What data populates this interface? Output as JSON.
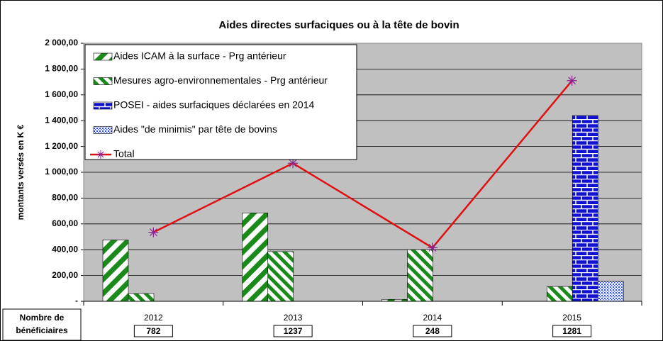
{
  "chart_data": {
    "type": "bar",
    "title": "Aides directes surfaciques ou à la tête de bovin",
    "y_label": "montants versés en K €",
    "categories": [
      "2012",
      "2013",
      "2014",
      "2015"
    ],
    "series": [
      {
        "name": "Aides ICAM à la surface - Prg antérieur",
        "color": "#1a8a1a",
        "pattern": "wide-diagonal",
        "values": [
          475,
          685,
          15,
          null
        ]
      },
      {
        "name": "Mesures agro-environnementales - Prg antérieur",
        "color": "#1a8a1a",
        "pattern": "diagonal",
        "values": [
          60,
          385,
          400,
          115
        ]
      },
      {
        "name": "POSEI - aides surfaciques déclarées en 2014",
        "color": "#1010d0",
        "pattern": "brick",
        "values": [
          null,
          null,
          null,
          1440
        ]
      },
      {
        "name": "Aides \"de minimis\" par tête de bovins",
        "color": "#3050e0",
        "pattern": "dots",
        "values": [
          null,
          null,
          null,
          155
        ]
      },
      {
        "name": "Total",
        "type": "line",
        "color": "#e01010",
        "marker_color": "#8a2090",
        "values": [
          535,
          1070,
          415,
          1710
        ]
      }
    ],
    "ylim": [
      0,
      2000
    ],
    "yticks": [
      {
        "value": 0,
        "label": "-"
      },
      {
        "value": 200,
        "label": "200,00"
      },
      {
        "value": 400,
        "label": "400,00"
      },
      {
        "value": 600,
        "label": "600,00"
      },
      {
        "value": 800,
        "label": "800,00"
      },
      {
        "value": 1000,
        "label": "1 000,00"
      },
      {
        "value": 1200,
        "label": "1 200,00"
      },
      {
        "value": 1400,
        "label": "1 400,00"
      },
      {
        "value": 1600,
        "label": "1 600,00"
      },
      {
        "value": 1800,
        "label": "1 800,00"
      },
      {
        "value": 2000,
        "label": "2 000,00"
      }
    ],
    "grid": true,
    "plot_background": "#c0c0c0",
    "legend": "upper-left",
    "beneficiaries_label": "Nombre de bénéficiaires",
    "beneficiaries": [
      782,
      1237,
      248,
      1281
    ]
  }
}
